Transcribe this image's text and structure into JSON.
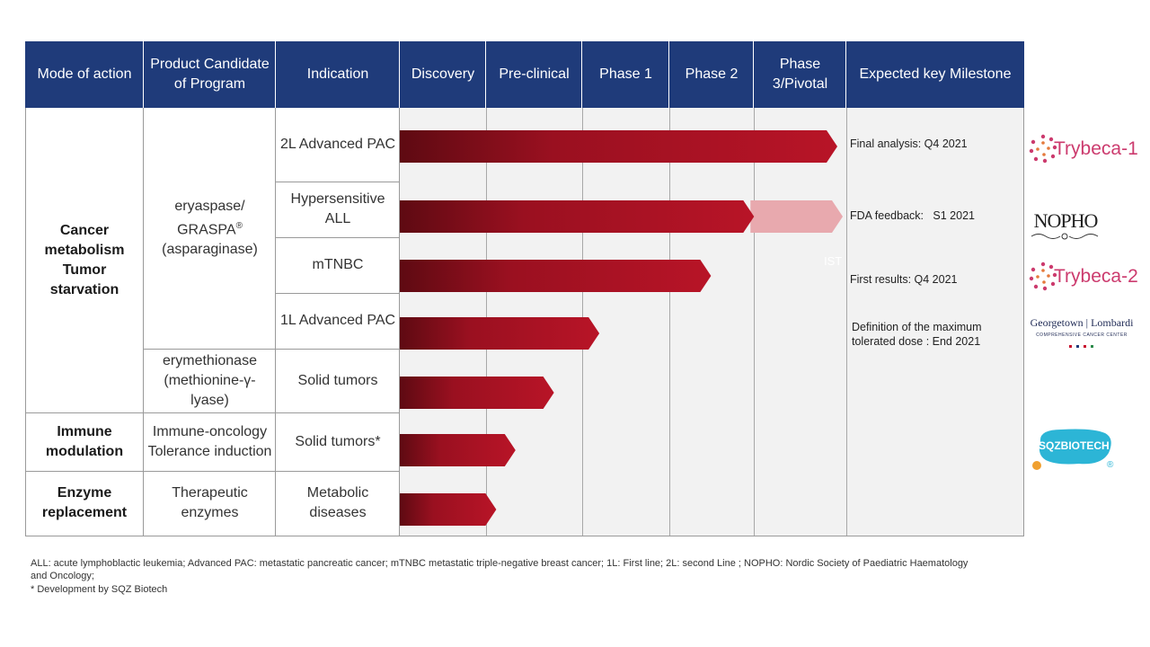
{
  "headers": {
    "mode": "Mode of action",
    "product": "Product Candidate of Program",
    "indication": "Indication",
    "discovery": "Discovery",
    "preclinical": "Pre-clinical",
    "phase1": "Phase 1",
    "phase2": "Phase 2",
    "phase3": "Phase 3/Pivotal",
    "milestone": "Expected key Milestone"
  },
  "modes": [
    {
      "label": "Cancer metabolism Tumor starvation"
    },
    {
      "label": "Immune modulation"
    },
    {
      "label": "Enzyme replacement"
    }
  ],
  "products": [
    {
      "label_main": "eryaspase/ GRASPA",
      "label_sup": "®",
      "label_sub": "(asparaginase)"
    },
    {
      "label": "erymethionase (methionine-γ-lyase)"
    },
    {
      "label": "Immune-oncology Tolerance induction"
    },
    {
      "label": "Therapeutic enzymes"
    }
  ],
  "chart_data": {
    "type": "bar",
    "orientation": "horizontal",
    "stages": [
      "Discovery",
      "Pre-clinical",
      "Phase 1",
      "Phase 2",
      "Phase 3/Pivotal"
    ],
    "categories": [
      "2L Advanced PAC",
      "Hypersensitive ALL",
      "mTNBC",
      "1L Advanced PAC",
      "Solid tumors",
      "Solid tumors*",
      "Metabolic diseases"
    ],
    "values": [
      5.0,
      4.1,
      3.6,
      2.3,
      1.8,
      1.4,
      1.2
    ],
    "extensions": [
      {
        "category": "Hypersensitive ALL",
        "value": 5.0
      }
    ],
    "annotations": [
      {
        "category": "mTNBC",
        "text": "IST"
      }
    ],
    "milestones": [
      "Final analysis: Q4 2021",
      "FDA feedback:   S1 2021",
      "First results: Q4 2021",
      "Definition of the maximum tolerated dose : End 2021"
    ],
    "xlim": [
      0,
      5
    ],
    "bar_color": "#a50f1e",
    "extension_color": "#e8a9ae"
  },
  "logos": {
    "trybeca1": "Trybeca-1",
    "nopho": "NOPHO",
    "trybeca2": "Trybeca-2",
    "georgetown": "Georgetown | Lombardi",
    "georgetown_sub": "COMPREHENSIVE CANCER CENTER",
    "sqz": "SQZBIOTECH",
    "sqz_mark": "®"
  },
  "footnote": {
    "line1": "ALL:  acute lymphoblactic leukemia; Advanced PAC:  metastatic pancreatic cancer; mTNBC metastatic triple-negative breast cancer; 1L: First line; 2L: second Line ; NOPHO: Nordic Society of Paediatric Haematology and Oncology;",
    "line2": "* Development by SQZ Biotech"
  },
  "colors": {
    "header_bg": "#1f3b7a",
    "stage_area_bg": "#f2f2f2",
    "trybeca": "#cc3b6e",
    "sqz": "#2cb5d6"
  }
}
